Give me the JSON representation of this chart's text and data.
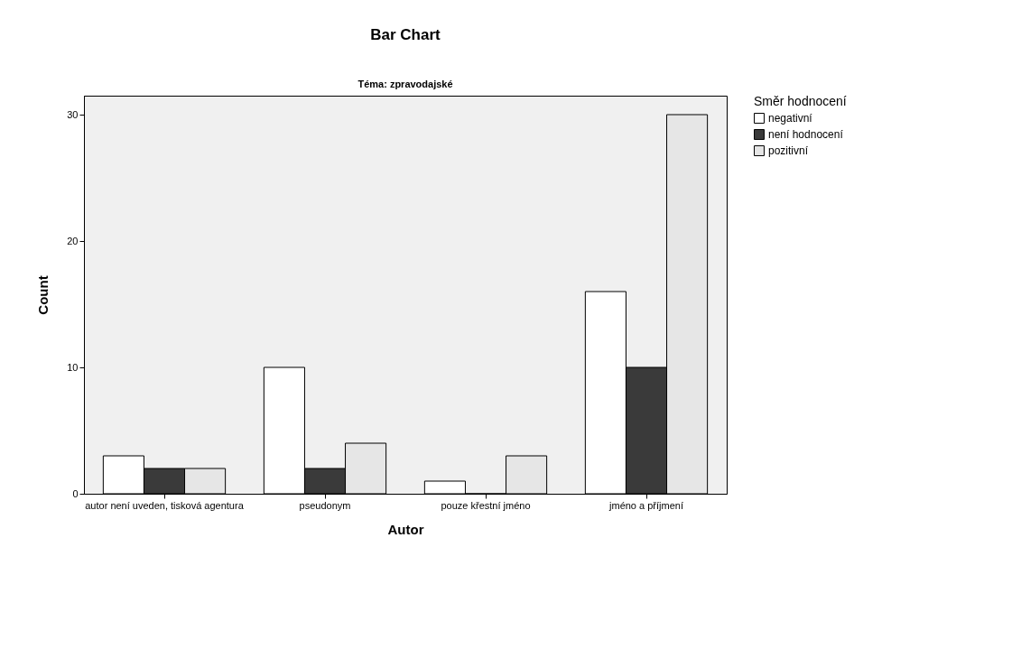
{
  "chart_data": {
    "type": "bar",
    "title": "Bar Chart",
    "subtitle": "Téma: zpravodajské",
    "xlabel": "Autor",
    "ylabel": "Count",
    "legend_title": "Směr hodnocení",
    "categories": [
      "autor není uveden, tisková agentura",
      "pseudonym",
      "pouze křestní jméno",
      "jméno a příjmení"
    ],
    "series": [
      {
        "name": "negativní",
        "color": "#ffffff",
        "values": [
          3,
          10,
          1,
          16
        ]
      },
      {
        "name": "není hodnocení",
        "color": "#3a3a3a",
        "values": [
          2,
          2,
          0,
          10
        ]
      },
      {
        "name": "pozitivní",
        "color": "#e6e6e6",
        "values": [
          2,
          4,
          3,
          30
        ]
      }
    ],
    "ylim": [
      0,
      31.5
    ],
    "yticks": [
      0,
      10,
      20,
      30
    ],
    "grid": false,
    "legend": "top right"
  }
}
